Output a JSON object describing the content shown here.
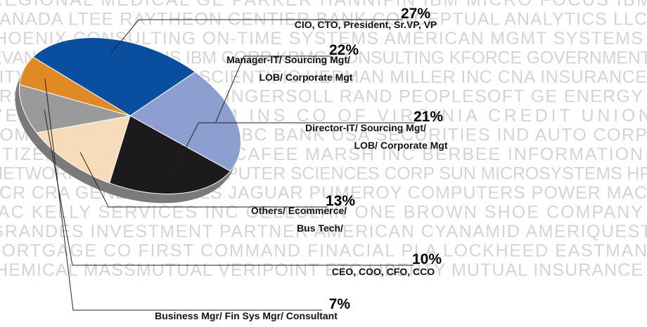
{
  "background_text": [
    "REGIONAL MEDICAL GE PARKER HANNIFIN IBM MICRO FOCUS IBM",
    "CANADA LTEE RAYTHEON CENTIER BANK CONCEPTUAL ANALYTICS LLC",
    "PHOENIX CONSULTING ON-TIME SYSTEMS AMERICAN MGMT SYSTEMS",
    "EVANS PRODUCTIONS IBM CORP KPMG CONSULTING KFORCE GOVERNMENT",
    "CITY OF DALLAS ARINC SCIENTIFIC HERMAN MILLER INC CNA INSURANCE",
    "FIRST DATA CORP ALTRIA INGERSOLL RAND PEOPLESOFT GE ENERGY",
    "VERIZON STATE FARM INS CO OF VIRGINIA CREDIT UNION",
    "COMMUNICATIONS CORP SBC BANK USA SECURITIES IND AUTO CORP",
    "CITIZENS BANK UNISYS MCAFEE MARSH INC BERBEE INFORMATION",
    "NETWORK APPLIANCE COMPUTER SCIENCES CORP SUN MICROSYSTEMS HP",
    "NCR CRA GENERAL MILLS JAGUAR PUMEROY COMPUTERS POWER MAC",
    "MAC KELLY SERVICES INC CELLULAR ONE BROWN SHOE COMPANY",
    "GRANDES INVESTMENT PARTNER AMERICAN CYANAMID AMERIQUEST",
    "MORTGAGE CO FIRST COMMAND FINACIAL PLA LOCKHEED EASTMAN",
    "CHEMICAL MASSMUTUAL VERIPOINT ETC LIBERTY MUTUAL INSURANCE"
  ],
  "chart_data": {
    "type": "pie",
    "categories": [
      [
        "CIO, CTO, President, Sr.VP, VP"
      ],
      [
        "Manager-IT/ Sourcing Mgt/",
        "LOB/ Corporate Mgt"
      ],
      [
        "Director-IT/ Sourcing Mgt/",
        "LOB/ Corporate Mgt"
      ],
      [
        "Others/ Ecommerce/",
        "Bus Tech/"
      ],
      [
        "CEO, COO, CFO, CCO"
      ],
      [
        "Business Mgr/ Fin Sys Mgr/ Consultant"
      ]
    ],
    "values": [
      27,
      22,
      21,
      13,
      10,
      7
    ],
    "value_labels": [
      "27%",
      "22%",
      "21%",
      "13%",
      "10%",
      "7%"
    ],
    "colors": [
      "#0a4ea0",
      "#8d9fd0",
      "#1c1a1c",
      "#f6dcb8",
      "#9a9a9a",
      "#e08a26"
    ]
  }
}
